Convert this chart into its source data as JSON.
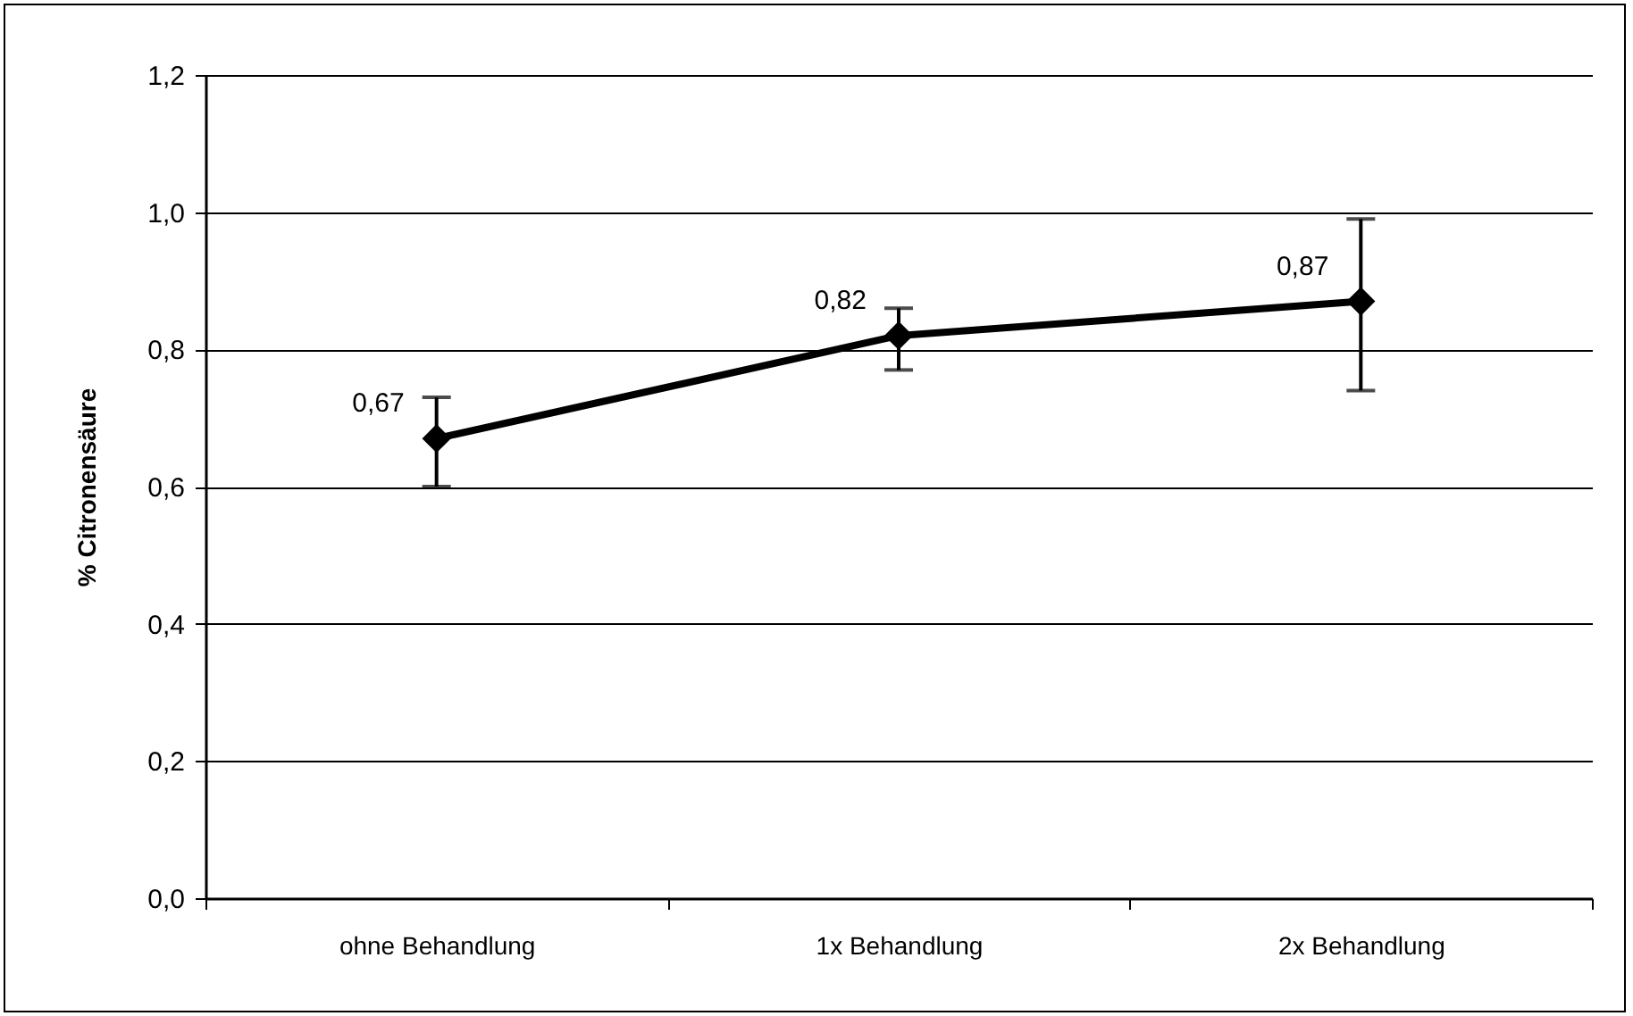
{
  "chart_data": {
    "type": "line",
    "ylabel": "% Citronensäure",
    "categories": [
      "ohne Behandlung",
      "1x Behandlung",
      "2x Behandlung"
    ],
    "series": [
      {
        "color": "#000000",
        "values": [
          0.67,
          0.82,
          0.87
        ],
        "value_labels": [
          "0,67",
          "0,82",
          "0,87"
        ],
        "errors": [
          [
            0.6,
            0.73
          ],
          [
            0.77,
            0.86
          ],
          [
            0.74,
            0.99
          ]
        ]
      }
    ],
    "ylim": [
      0,
      1.2
    ],
    "yticks": [
      {
        "value": 0,
        "label": "0,0"
      },
      {
        "value": 0.2,
        "label": "0,2"
      },
      {
        "value": 0.4,
        "label": "0,4"
      },
      {
        "value": 0.6,
        "label": "0,6"
      },
      {
        "value": 0.8,
        "label": "0,8"
      },
      {
        "value": 1.0,
        "label": "1,0"
      },
      {
        "value": 1.2,
        "label": "1,2"
      }
    ],
    "grid": "y",
    "marker": "diamond",
    "line_style": "solid"
  }
}
